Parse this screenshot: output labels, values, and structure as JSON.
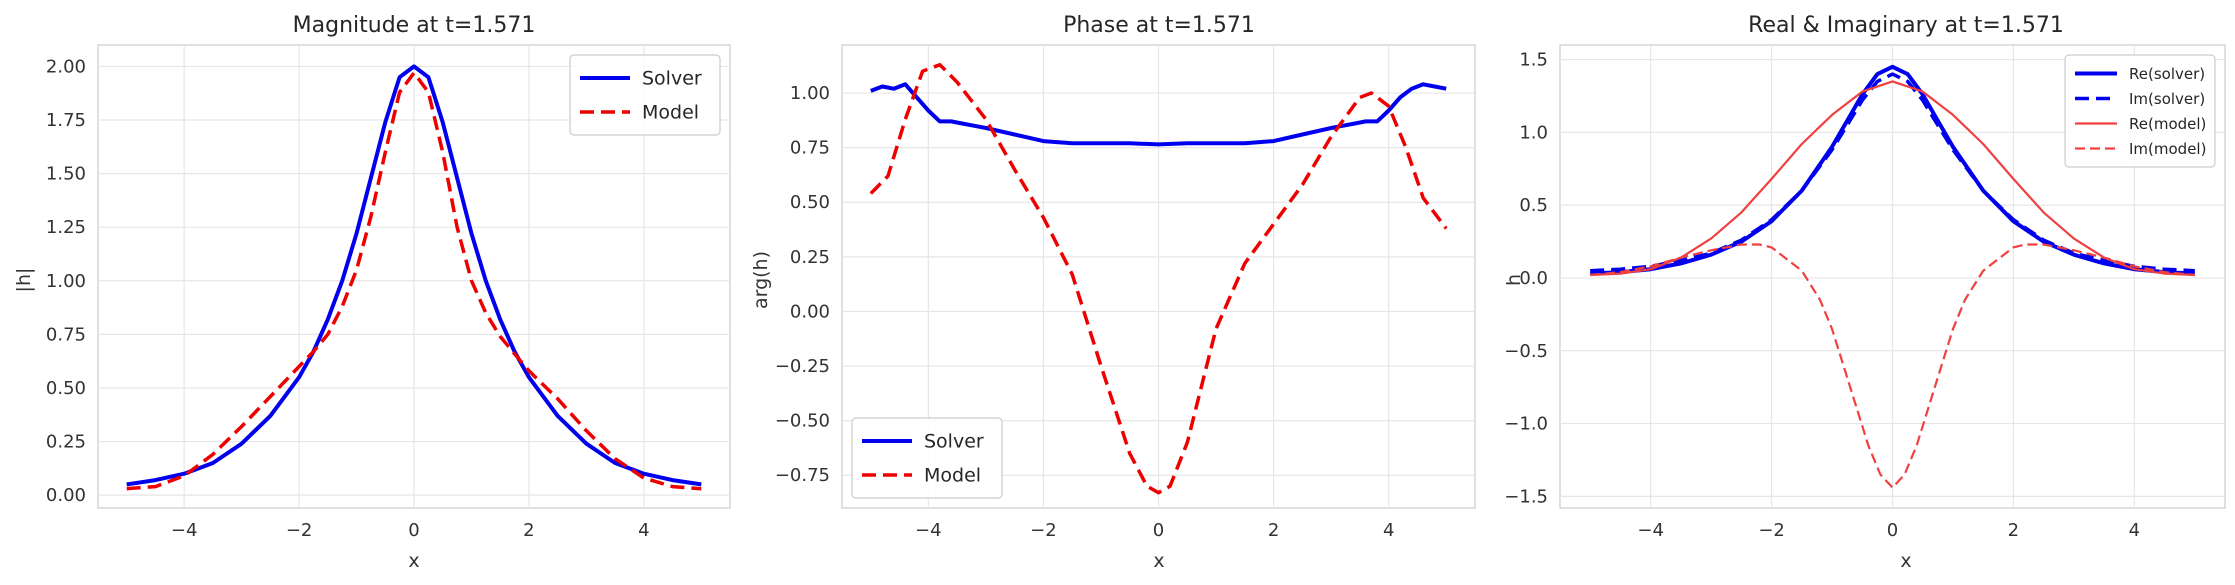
{
  "chart_data": [
    {
      "type": "line",
      "title": "Magnitude at t=1.571",
      "xlabel": "x",
      "ylabel": "|h|",
      "xlim": [
        -5.5,
        5.5
      ],
      "ylim": [
        -0.06,
        2.1
      ],
      "xticks": [
        -4,
        -2,
        0,
        2,
        4
      ],
      "xticklabels": [
        "−4",
        "−2",
        "0",
        "2",
        "4"
      ],
      "yticks": [
        0,
        0.25,
        0.5,
        0.75,
        1.0,
        1.25,
        1.5,
        1.75,
        2.0
      ],
      "yticklabels": [
        "0.00",
        "0.25",
        "0.50",
        "0.75",
        "1.00",
        "1.25",
        "1.50",
        "1.75",
        "2.00"
      ],
      "grid": true,
      "legend": "top-right",
      "series": [
        {
          "name": "Solver",
          "color": "#0000ee",
          "dash": "solid",
          "width": 4,
          "x": [
            -5,
            -4.5,
            -4,
            -3.5,
            -3,
            -2.5,
            -2,
            -1.75,
            -1.5,
            -1.25,
            -1,
            -0.75,
            -0.5,
            -0.25,
            0,
            0.25,
            0.5,
            0.75,
            1,
            1.25,
            1.5,
            1.75,
            2,
            2.5,
            3,
            3.5,
            4,
            4.5,
            5
          ],
          "y": [
            0.05,
            0.07,
            0.1,
            0.15,
            0.24,
            0.37,
            0.55,
            0.67,
            0.82,
            1.0,
            1.22,
            1.48,
            1.74,
            1.95,
            2.0,
            1.95,
            1.74,
            1.48,
            1.22,
            1.0,
            0.82,
            0.67,
            0.55,
            0.37,
            0.24,
            0.15,
            0.1,
            0.07,
            0.05
          ]
        },
        {
          "name": "Model",
          "color": "#ee0000",
          "dash": "dashed",
          "width": 3.5,
          "x": [
            -5,
            -4.5,
            -4,
            -3.5,
            -3,
            -2.5,
            -2,
            -1.75,
            -1.5,
            -1.25,
            -1,
            -0.75,
            -0.5,
            -0.25,
            0,
            0.25,
            0.5,
            0.75,
            1,
            1.25,
            1.5,
            1.75,
            2,
            2.5,
            3,
            3.5,
            4,
            4.5,
            5
          ],
          "y": [
            0.03,
            0.04,
            0.09,
            0.19,
            0.32,
            0.46,
            0.6,
            0.67,
            0.75,
            0.88,
            1.05,
            1.3,
            1.6,
            1.88,
            1.97,
            1.88,
            1.6,
            1.25,
            1.0,
            0.85,
            0.74,
            0.66,
            0.58,
            0.45,
            0.3,
            0.17,
            0.08,
            0.04,
            0.03
          ]
        }
      ]
    },
    {
      "type": "line",
      "title": "Phase at t=1.571",
      "xlabel": "x",
      "ylabel": "arg(h)",
      "xlim": [
        -5.5,
        5.5
      ],
      "ylim": [
        -0.9,
        1.22
      ],
      "xticks": [
        -4,
        -2,
        0,
        2,
        4
      ],
      "xticklabels": [
        "−4",
        "−2",
        "0",
        "2",
        "4"
      ],
      "yticks": [
        -0.75,
        -0.5,
        -0.25,
        0,
        0.25,
        0.5,
        0.75,
        1.0
      ],
      "yticklabels": [
        "−0.75",
        "−0.50",
        "−0.25",
        "0.00",
        "0.25",
        "0.50",
        "0.75",
        "1.00"
      ],
      "grid": true,
      "legend": "lower-left",
      "series": [
        {
          "name": "Solver",
          "color": "#0000ee",
          "dash": "solid",
          "width": 4,
          "x": [
            -5,
            -4.8,
            -4.6,
            -4.4,
            -4.2,
            -4,
            -3.8,
            -3.6,
            -3.4,
            -3.2,
            -3,
            -2.5,
            -2,
            -1.5,
            -1,
            -0.5,
            0,
            0.5,
            1,
            1.5,
            2,
            2.5,
            3,
            3.2,
            3.4,
            3.6,
            3.8,
            4,
            4.2,
            4.4,
            4.6,
            4.8,
            5
          ],
          "y": [
            1.01,
            1.03,
            1.02,
            1.04,
            0.98,
            0.92,
            0.87,
            0.87,
            0.86,
            0.85,
            0.84,
            0.81,
            0.78,
            0.77,
            0.77,
            0.77,
            0.765,
            0.77,
            0.77,
            0.77,
            0.78,
            0.81,
            0.84,
            0.85,
            0.86,
            0.87,
            0.87,
            0.92,
            0.98,
            1.02,
            1.04,
            1.03,
            1.02
          ]
        },
        {
          "name": "Model",
          "color": "#ee0000",
          "dash": "dashed",
          "width": 3.5,
          "x": [
            -5,
            -4.7,
            -4.4,
            -4.1,
            -3.8,
            -3.5,
            -3,
            -2.5,
            -2,
            -1.5,
            -1,
            -0.5,
            -0.2,
            0,
            0.2,
            0.5,
            1,
            1.5,
            2,
            2.5,
            3,
            3.5,
            3.7,
            4,
            4.3,
            4.6,
            5
          ],
          "y": [
            0.54,
            0.62,
            0.88,
            1.1,
            1.13,
            1.05,
            0.88,
            0.65,
            0.43,
            0.17,
            -0.25,
            -0.65,
            -0.8,
            -0.83,
            -0.8,
            -0.6,
            -0.08,
            0.22,
            0.4,
            0.58,
            0.8,
            0.98,
            1.0,
            0.94,
            0.75,
            0.52,
            0.38
          ]
        }
      ]
    },
    {
      "type": "line",
      "title": "Real & Imaginary at t=1.571",
      "xlabel": "x",
      "ylabel": "h",
      "xlim": [
        -5.5,
        5.5
      ],
      "ylim": [
        -1.58,
        1.6
      ],
      "xticks": [
        -4,
        -2,
        0,
        2,
        4
      ],
      "xticklabels": [
        "−4",
        "−2",
        "0",
        "2",
        "4"
      ],
      "yticks": [
        -1.5,
        -1.0,
        -0.5,
        0,
        0.5,
        1.0,
        1.5
      ],
      "yticklabels": [
        "−1.5",
        "−1.0",
        "−0.5",
        "0.0",
        "0.5",
        "1.0",
        "1.5"
      ],
      "grid": true,
      "legend": "top-right",
      "series": [
        {
          "name": "Re(solver)",
          "color": "#0000ee",
          "dash": "solid",
          "width": 4,
          "x": [
            -5,
            -4.5,
            -4,
            -3.5,
            -3,
            -2.5,
            -2,
            -1.5,
            -1,
            -0.75,
            -0.5,
            -0.25,
            0,
            0.25,
            0.5,
            0.75,
            1,
            1.5,
            2,
            2.5,
            3,
            3.5,
            4,
            4.5,
            5
          ],
          "y": [
            0.03,
            0.04,
            0.06,
            0.1,
            0.16,
            0.25,
            0.39,
            0.6,
            0.9,
            1.08,
            1.26,
            1.4,
            1.45,
            1.4,
            1.26,
            1.08,
            0.9,
            0.6,
            0.39,
            0.25,
            0.16,
            0.1,
            0.06,
            0.04,
            0.03
          ]
        },
        {
          "name": "Im(solver)",
          "color": "#0000ee",
          "dash": "dashed",
          "width": 3.5,
          "x": [
            -5,
            -4.5,
            -4,
            -3.5,
            -3,
            -2.5,
            -2,
            -1.5,
            -1,
            -0.75,
            -0.5,
            -0.25,
            0,
            0.25,
            0.5,
            0.75,
            1,
            1.5,
            2,
            2.5,
            3,
            3.5,
            4,
            4.5,
            5
          ],
          "y": [
            0.05,
            0.06,
            0.08,
            0.12,
            0.17,
            0.26,
            0.4,
            0.6,
            0.88,
            1.05,
            1.22,
            1.35,
            1.4,
            1.35,
            1.22,
            1.05,
            0.88,
            0.6,
            0.4,
            0.26,
            0.17,
            0.12,
            0.08,
            0.06,
            0.05
          ]
        },
        {
          "name": "Re(model)",
          "color": "#f04040",
          "dash": "solid",
          "width": 2.2,
          "x": [
            -5,
            -4.5,
            -4,
            -3.5,
            -3,
            -2.5,
            -2,
            -1.5,
            -1,
            -0.5,
            0,
            0.5,
            1,
            1.5,
            2,
            2.5,
            3,
            3.5,
            4,
            4.5,
            5
          ],
          "y": [
            0.02,
            0.03,
            0.06,
            0.14,
            0.27,
            0.45,
            0.68,
            0.92,
            1.12,
            1.28,
            1.35,
            1.28,
            1.12,
            0.92,
            0.68,
            0.45,
            0.27,
            0.14,
            0.06,
            0.03,
            0.02
          ]
        },
        {
          "name": "Im(model)",
          "color": "#f04040",
          "dash": "dashed",
          "width": 2.2,
          "x": [
            -5,
            -4.5,
            -4,
            -3.5,
            -3,
            -2.5,
            -2.2,
            -2,
            -1.5,
            -1.2,
            -1,
            -0.7,
            -0.4,
            -0.2,
            0,
            0.2,
            0.4,
            0.7,
            1,
            1.2,
            1.5,
            2,
            2.2,
            2.5,
            3,
            3.5,
            4,
            4.5,
            5
          ],
          "y": [
            0.02,
            0.04,
            0.08,
            0.14,
            0.19,
            0.23,
            0.23,
            0.21,
            0.05,
            -0.15,
            -0.35,
            -0.75,
            -1.15,
            -1.35,
            -1.44,
            -1.35,
            -1.15,
            -0.75,
            -0.35,
            -0.15,
            0.05,
            0.21,
            0.23,
            0.23,
            0.19,
            0.14,
            0.08,
            0.04,
            0.02
          ]
        }
      ]
    }
  ]
}
